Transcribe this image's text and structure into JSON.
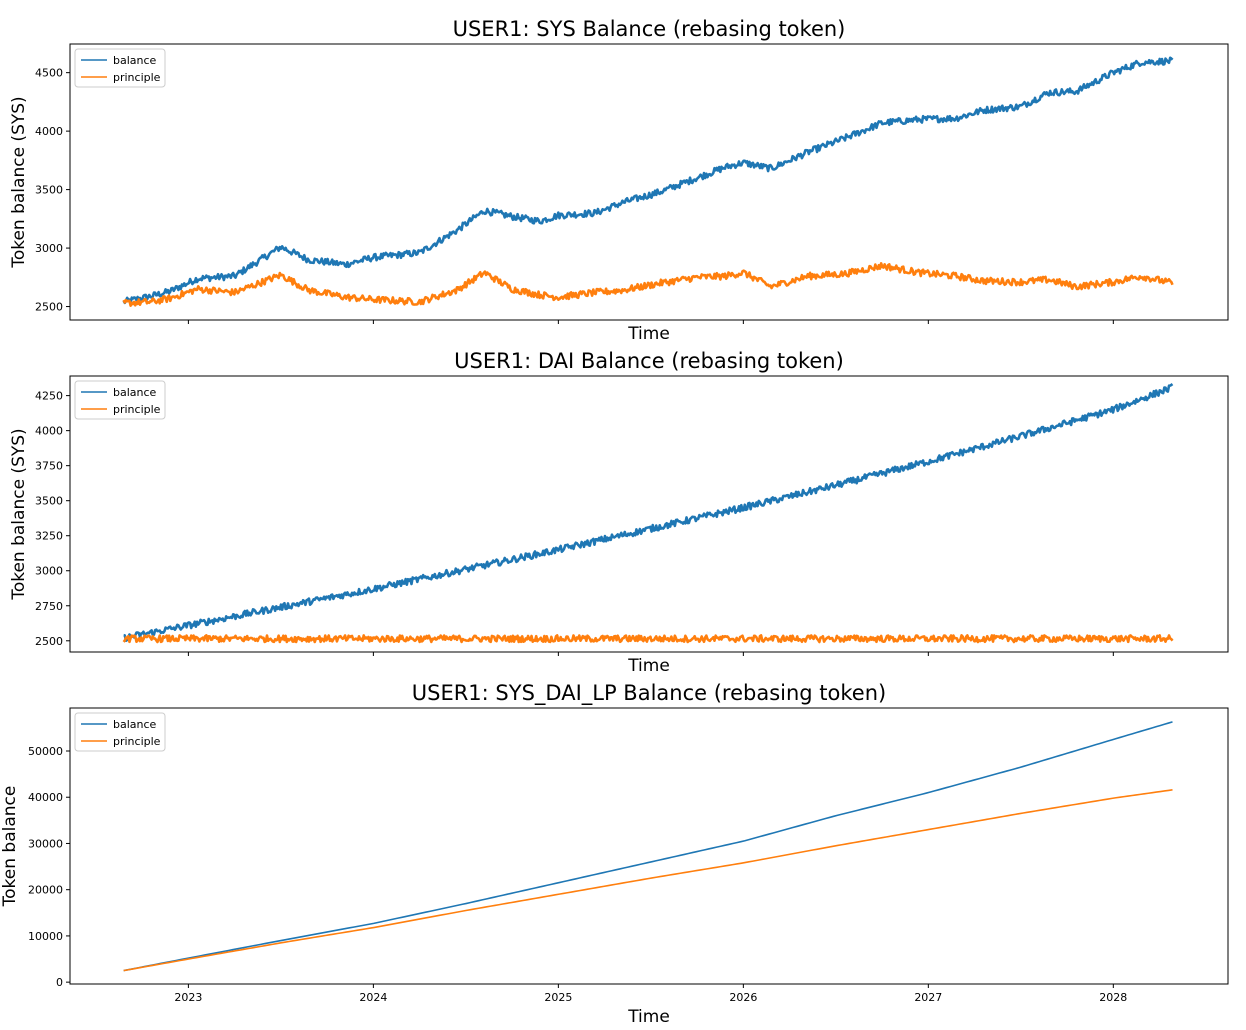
{
  "header": {
    "note": ""
  },
  "chart_data": [
    {
      "type": "line",
      "title": "USER1: SYS Balance (rebasing token)",
      "xlabel": "Time",
      "ylabel": "Token balance (SYS)",
      "show_x_tick_labels": false,
      "xlim": [
        2022.36,
        2028.62
      ],
      "ylim": [
        2385,
        4745
      ],
      "y_ticks": [
        2500,
        3000,
        3500,
        4000,
        4500
      ],
      "x_ticks": [
        2023,
        2024,
        2025,
        2026,
        2027,
        2028
      ],
      "x_tick_labels": [
        "2023",
        "2024",
        "2025",
        "2026",
        "2027",
        "2028"
      ],
      "grid": false,
      "legend": "upper-left",
      "noisy": true,
      "x": [
        2022.65,
        2022.8,
        2022.9,
        2023.05,
        2023.25,
        2023.5,
        2023.65,
        2023.85,
        2024.0,
        2024.25,
        2024.45,
        2024.6,
        2024.75,
        2024.9,
        2025.0,
        2025.2,
        2025.35,
        2025.55,
        2025.75,
        2025.9,
        2026.0,
        2026.15,
        2026.35,
        2026.55,
        2026.75,
        2026.95,
        2027.15,
        2027.3,
        2027.5,
        2027.65,
        2027.8,
        2028.0,
        2028.15,
        2028.32
      ],
      "series": [
        {
          "name": "balance",
          "color": "#1f77b4",
          "values": [
            2540,
            2590,
            2630,
            2740,
            2760,
            3010,
            2900,
            2860,
            2920,
            2960,
            3150,
            3320,
            3270,
            3230,
            3280,
            3300,
            3390,
            3480,
            3600,
            3690,
            3730,
            3680,
            3820,
            3940,
            4070,
            4100,
            4110,
            4180,
            4210,
            4330,
            4340,
            4500,
            4590,
            4600
          ]
        },
        {
          "name": "principle",
          "color": "#ff7f0e",
          "values": [
            2530,
            2540,
            2570,
            2650,
            2620,
            2770,
            2640,
            2580,
            2560,
            2540,
            2640,
            2790,
            2650,
            2600,
            2580,
            2620,
            2640,
            2700,
            2750,
            2760,
            2790,
            2670,
            2760,
            2780,
            2850,
            2790,
            2760,
            2720,
            2710,
            2730,
            2670,
            2710,
            2760,
            2700
          ]
        }
      ]
    },
    {
      "type": "line",
      "title": "USER1: DAI Balance (rebasing token)",
      "xlabel": "Time",
      "ylabel": "Token balance (SYS)",
      "show_x_tick_labels": false,
      "xlim": [
        2022.36,
        2028.62
      ],
      "ylim": [
        2420,
        4390
      ],
      "y_ticks": [
        2500,
        2750,
        3000,
        3250,
        3500,
        3750,
        4000,
        4250
      ],
      "x_ticks": [
        2023,
        2024,
        2025,
        2026,
        2027,
        2028
      ],
      "x_tick_labels": [
        "2023",
        "2024",
        "2025",
        "2026",
        "2027",
        "2028"
      ],
      "grid": false,
      "legend": "upper-left",
      "noisy": true,
      "x": [
        2022.65,
        2023.0,
        2023.5,
        2024.0,
        2024.5,
        2025.0,
        2025.5,
        2026.0,
        2026.5,
        2027.0,
        2027.5,
        2028.0,
        2028.32
      ],
      "series": [
        {
          "name": "balance",
          "color": "#1f77b4",
          "values": [
            2520,
            2610,
            2740,
            2870,
            3010,
            3150,
            3300,
            3450,
            3610,
            3780,
            3960,
            4150,
            4310
          ]
        },
        {
          "name": "principle",
          "color": "#ff7f0e",
          "values": [
            2515,
            2515,
            2515,
            2515,
            2515,
            2515,
            2515,
            2515,
            2515,
            2515,
            2515,
            2515,
            2515
          ]
        }
      ]
    },
    {
      "type": "line",
      "title": "USER1: SYS_DAI_LP Balance (rebasing token)",
      "xlabel": "Time",
      "ylabel": "Token balance",
      "show_x_tick_labels": true,
      "xlim": [
        2022.36,
        2028.62
      ],
      "ylim": [
        -400,
        59300
      ],
      "y_ticks": [
        0,
        10000,
        20000,
        30000,
        40000,
        50000
      ],
      "x_ticks": [
        2023,
        2024,
        2025,
        2026,
        2027,
        2028
      ],
      "x_tick_labels": [
        "2023",
        "2024",
        "2025",
        "2026",
        "2027",
        "2028"
      ],
      "grid": false,
      "legend": "upper-left",
      "noisy": false,
      "x": [
        2022.65,
        2023.0,
        2023.5,
        2024.0,
        2024.5,
        2025.0,
        2025.5,
        2026.0,
        2026.5,
        2027.0,
        2027.5,
        2028.0,
        2028.32
      ],
      "series": [
        {
          "name": "balance",
          "color": "#1f77b4",
          "values": [
            2500,
            5200,
            9000,
            12700,
            17000,
            21500,
            26000,
            30500,
            36000,
            41000,
            46500,
            52500,
            56300
          ]
        },
        {
          "name": "principle",
          "color": "#ff7f0e",
          "values": [
            2500,
            5000,
            8500,
            11800,
            15500,
            19000,
            22500,
            25800,
            29500,
            33000,
            36500,
            39800,
            41600
          ]
        }
      ]
    }
  ]
}
